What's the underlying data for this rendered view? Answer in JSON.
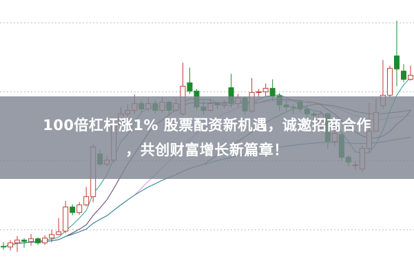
{
  "headline": {
    "line1": "100倍杠杆涨1% 股票配资新机遇，诚邀招商合作",
    "line2": "，共创财富增长新篇章！"
  },
  "chart_data": {
    "type": "candlestick",
    "title": "",
    "xlabel": "",
    "ylabel": "",
    "ylim": [
      0,
      40
    ],
    "grid": true,
    "grid_style": "dotted-horizontal",
    "colors": {
      "up": "#c0392b",
      "down": "#1e8a2e",
      "grid": "#bbbbbb",
      "banner": "#808692"
    },
    "moving_averages": [
      {
        "period": 5,
        "color": "#2a9d9d"
      },
      {
        "period": 10,
        "color": "#5b3a6e"
      },
      {
        "period": 20,
        "color": "#e08ae0"
      },
      {
        "period": 30,
        "color": "#3c6e3c"
      },
      {
        "period": 60,
        "color": "#2f8f9f"
      }
    ],
    "ohlc": [
      [
        4.4,
        5.0,
        3.9,
        4.3
      ],
      [
        4.3,
        5.3,
        3.8,
        4.9
      ],
      [
        4.9,
        5.9,
        3.6,
        5.3
      ],
      [
        5.3,
        5.6,
        4.2,
        5.1
      ],
      [
        5.1,
        6.2,
        4.5,
        5.5
      ],
      [
        5.5,
        5.7,
        4.6,
        4.9
      ],
      [
        4.9,
        6.0,
        4.6,
        5.6
      ],
      [
        5.6,
        6.8,
        5.0,
        6.1
      ],
      [
        6.1,
        8.5,
        6.0,
        6.5
      ],
      [
        6.6,
        11.0,
        6.3,
        10.1
      ],
      [
        10.1,
        10.5,
        8.9,
        9.3
      ],
      [
        9.3,
        10.8,
        9.0,
        10.4
      ],
      [
        10.4,
        13.0,
        10.2,
        11.6
      ],
      [
        11.6,
        19.2,
        10.8,
        18.8
      ],
      [
        17.8,
        18.4,
        16.0,
        16.3
      ],
      [
        16.3,
        17.5,
        16.0,
        16.9
      ],
      [
        16.9,
        22.8,
        16.5,
        22.1
      ],
      [
        22.1,
        24.6,
        21.5,
        23.6
      ],
      [
        23.6,
        25.0,
        23.0,
        24.1
      ],
      [
        24.1,
        26.4,
        23.6,
        25.1
      ],
      [
        25.1,
        25.6,
        23.8,
        24.3
      ],
      [
        24.3,
        25.9,
        24.0,
        25.1
      ],
      [
        25.1,
        25.6,
        23.7,
        24.1
      ],
      [
        24.1,
        26.0,
        23.8,
        25.3
      ],
      [
        25.3,
        25.5,
        23.6,
        24.1
      ],
      [
        24.1,
        25.8,
        23.9,
        25.1
      ],
      [
        23.6,
        31.0,
        23.3,
        27.6
      ],
      [
        28.1,
        30.3,
        26.5,
        26.9
      ],
      [
        26.9,
        27.2,
        24.2,
        24.6
      ],
      [
        24.6,
        25.5,
        23.5,
        24.1
      ],
      [
        24.1,
        25.8,
        23.9,
        25.1
      ],
      [
        25.1,
        25.4,
        24.3,
        24.9
      ],
      [
        24.9,
        25.6,
        24.4,
        25.1
      ],
      [
        27.4,
        29.4,
        24.5,
        25.1
      ],
      [
        25.1,
        26.5,
        24.6,
        25.9
      ],
      [
        25.9,
        26.1,
        23.5,
        24.0
      ],
      [
        24.0,
        28.8,
        23.8,
        26.7
      ],
      [
        26.7,
        27.2,
        26.0,
        26.8
      ],
      [
        26.8,
        28.0,
        26.2,
        27.3
      ],
      [
        27.3,
        28.6,
        25.5,
        26.2
      ],
      [
        26.2,
        26.6,
        24.0,
        24.9
      ],
      [
        24.9,
        25.5,
        24.0,
        24.6
      ],
      [
        24.6,
        25.0,
        23.6,
        24.5
      ],
      [
        25.3,
        25.6,
        23.8,
        24.3
      ],
      [
        24.3,
        24.8,
        23.0,
        23.6
      ],
      [
        23.6,
        24.0,
        22.5,
        23.4
      ],
      [
        21.6,
        24.0,
        21.2,
        23.6
      ],
      [
        23.6,
        23.8,
        18.5,
        19.6
      ],
      [
        19.6,
        22.4,
        18.9,
        20.8
      ],
      [
        20.6,
        21.0,
        16.8,
        17.3
      ],
      [
        17.3,
        17.6,
        16.0,
        16.6
      ],
      [
        16.1,
        16.8,
        15.5,
        16.2
      ],
      [
        15.6,
        19.0,
        15.2,
        18.6
      ],
      [
        18.6,
        25.2,
        18.0,
        21.1
      ],
      [
        21.1,
        25.8,
        21.0,
        23.8
      ],
      [
        24.8,
        31.4,
        24.4,
        26.3
      ],
      [
        26.3,
        30.6,
        26.0,
        30.2
      ],
      [
        32.0,
        37.1,
        27.6,
        30.1
      ],
      [
        29.8,
        30.8,
        28.2,
        28.6
      ],
      [
        28.6,
        30.6,
        28.4,
        29.2
      ]
    ]
  }
}
